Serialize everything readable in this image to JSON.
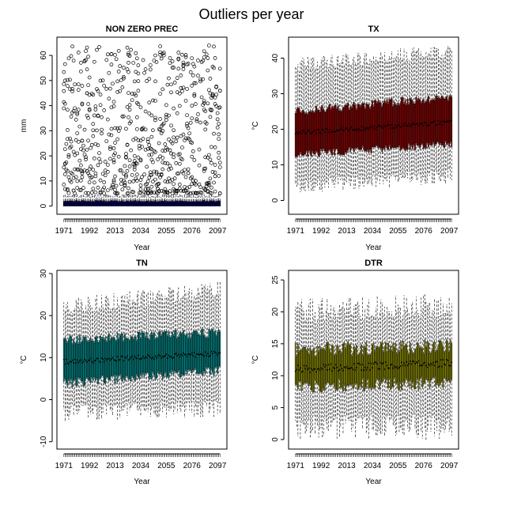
{
  "title": "Outliers per year",
  "chart_data": [
    {
      "type": "box",
      "title": "NON ZERO PREC",
      "xlabel": "Year",
      "ylabel": "mm",
      "x_range": [
        1971,
        2100
      ],
      "x_ticks": [
        1971,
        1992,
        2013,
        2034,
        2055,
        2076,
        2097
      ],
      "ylim": [
        -2,
        66
      ],
      "y_ticks": [
        0,
        10,
        20,
        30,
        40,
        50,
        60
      ],
      "box_color": "#000080",
      "box": {
        "q1": 0.0,
        "median": 1.0,
        "q3": 2.0,
        "whisker_low": 0.0,
        "whisker_high": 4.0
      },
      "outlier_range": [
        5,
        64
      ]
    },
    {
      "type": "box",
      "title": "TX",
      "xlabel": "Year",
      "ylabel": "°C",
      "x_range": [
        1971,
        2100
      ],
      "x_ticks": [
        1971,
        1992,
        2013,
        2034,
        2055,
        2076,
        2097
      ],
      "ylim": [
        -3,
        45
      ],
      "y_ticks": [
        0,
        10,
        20,
        30,
        40
      ],
      "box_color": "#800000",
      "box_start": {
        "q1": 13,
        "median": 19,
        "q3": 25,
        "whisker_low": 4,
        "whisker_high": 38
      },
      "box_end": {
        "q1": 16,
        "median": 22,
        "q3": 29,
        "whisker_low": 7,
        "whisker_high": 42
      }
    },
    {
      "type": "box",
      "title": "TN",
      "xlabel": "Year",
      "ylabel": "°C",
      "x_range": [
        1971,
        2100
      ],
      "x_ticks": [
        1971,
        1992,
        2013,
        2034,
        2055,
        2076,
        2097
      ],
      "ylim": [
        -11,
        30
      ],
      "y_ticks": [
        -10,
        0,
        10,
        20,
        30
      ],
      "box_color": "#008080",
      "box_start": {
        "q1": 4,
        "median": 9,
        "q3": 14,
        "whisker_low": -3,
        "whisker_high": 22
      },
      "box_end": {
        "q1": 7,
        "median": 11,
        "q3": 16,
        "whisker_low": -2,
        "whisker_high": 26
      }
    },
    {
      "type": "box",
      "title": "DTR",
      "xlabel": "Year",
      "ylabel": "°C",
      "x_range": [
        1971,
        2100
      ],
      "x_ticks": [
        1971,
        1992,
        2013,
        2034,
        2055,
        2076,
        2097
      ],
      "ylim": [
        -1,
        26
      ],
      "y_ticks": [
        0,
        5,
        10,
        15,
        20,
        25
      ],
      "box_color": "#808000",
      "box_start": {
        "q1": 8.5,
        "median": 11,
        "q3": 14,
        "whisker_low": 2,
        "whisker_high": 20
      },
      "box_end": {
        "q1": 9,
        "median": 12,
        "q3": 14.5,
        "whisker_low": 2,
        "whisker_high": 21
      }
    }
  ]
}
